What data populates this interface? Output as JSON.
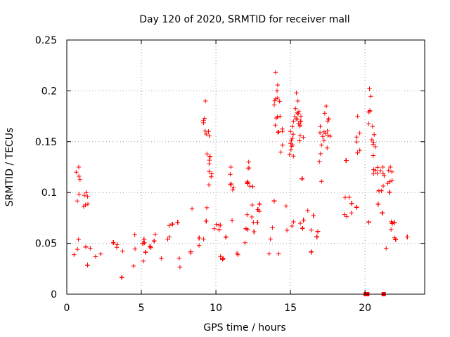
{
  "chart_data": {
    "type": "scatter",
    "title": "Day 120 of 2020, SRMTID for receiver mall",
    "xlabel": "GPS time / hours",
    "ylabel": "SRMTID / TECUs",
    "xlim": [
      0,
      24
    ],
    "ylim": [
      0,
      0.25
    ],
    "xticks": [
      0,
      5,
      10,
      15,
      20
    ],
    "yticks": [
      0,
      0.05,
      0.1,
      0.15,
      0.2,
      0.25
    ],
    "xtick_labels": [
      "0",
      "5",
      "10",
      "15",
      "20"
    ],
    "ytick_labels": [
      "0",
      "0.05",
      "0.1",
      "0.15",
      "0.2",
      "0.25"
    ],
    "grid": true,
    "marker": "+",
    "color": "#ff0000",
    "trend": [
      [
        0.0,
        0.06
      ],
      [
        0.5,
        0.045
      ],
      [
        1.0,
        0.05
      ],
      [
        1.5,
        0.042
      ],
      [
        2.0,
        0.04
      ],
      [
        2.5,
        0.045
      ],
      [
        3.0,
        0.045
      ],
      [
        3.5,
        0.038
      ],
      [
        4.0,
        0.035
      ],
      [
        4.5,
        0.045
      ],
      [
        5.0,
        0.05
      ],
      [
        5.5,
        0.048
      ],
      [
        6.0,
        0.055
      ],
      [
        6.5,
        0.06
      ],
      [
        7.0,
        0.058
      ],
      [
        7.5,
        0.055
      ],
      [
        8.0,
        0.05
      ],
      [
        8.5,
        0.055
      ],
      [
        9.0,
        0.055
      ],
      [
        9.5,
        0.075
      ],
      [
        10.0,
        0.065
      ],
      [
        10.5,
        0.055
      ],
      [
        11.0,
        0.06
      ],
      [
        11.5,
        0.065
      ],
      [
        12.0,
        0.075
      ],
      [
        12.5,
        0.07
      ],
      [
        13.0,
        0.06
      ],
      [
        13.5,
        0.055
      ],
      [
        14.0,
        0.08
      ],
      [
        14.5,
        0.075
      ],
      [
        15.0,
        0.09
      ],
      [
        15.5,
        0.095
      ],
      [
        16.0,
        0.07
      ],
      [
        16.5,
        0.065
      ],
      [
        17.0,
        0.075
      ],
      [
        17.5,
        0.09
      ],
      [
        18.0,
        0.08
      ],
      [
        18.5,
        0.085
      ],
      [
        19.0,
        0.09
      ],
      [
        19.5,
        0.08
      ],
      [
        20.0,
        0.07
      ],
      [
        20.5,
        0.09
      ],
      [
        21.0,
        0.075
      ],
      [
        21.5,
        0.065
      ],
      [
        22.0,
        0.055
      ],
      [
        22.5,
        0.045
      ],
      [
        22.9,
        0.05
      ]
    ],
    "peaks": [
      [
        0.8,
        0.125
      ],
      [
        1.3,
        0.1
      ],
      [
        9.3,
        0.19
      ],
      [
        9.5,
        0.16
      ],
      [
        9.6,
        0.135
      ],
      [
        11.0,
        0.125
      ],
      [
        12.2,
        0.13
      ],
      [
        14.0,
        0.218
      ],
      [
        14.1,
        0.2
      ],
      [
        14.3,
        0.175
      ],
      [
        15.0,
        0.16
      ],
      [
        15.2,
        0.17
      ],
      [
        15.4,
        0.198
      ],
      [
        15.5,
        0.19
      ],
      [
        15.7,
        0.175
      ],
      [
        17.0,
        0.165
      ],
      [
        17.4,
        0.185
      ],
      [
        17.5,
        0.17
      ],
      [
        19.5,
        0.175
      ],
      [
        20.3,
        0.202
      ],
      [
        20.5,
        0.165
      ],
      [
        20.7,
        0.145
      ],
      [
        21.2,
        0.125
      ],
      [
        21.7,
        0.125
      ]
    ],
    "zero_markers": [
      20.05,
      20.15,
      21.25
    ]
  }
}
